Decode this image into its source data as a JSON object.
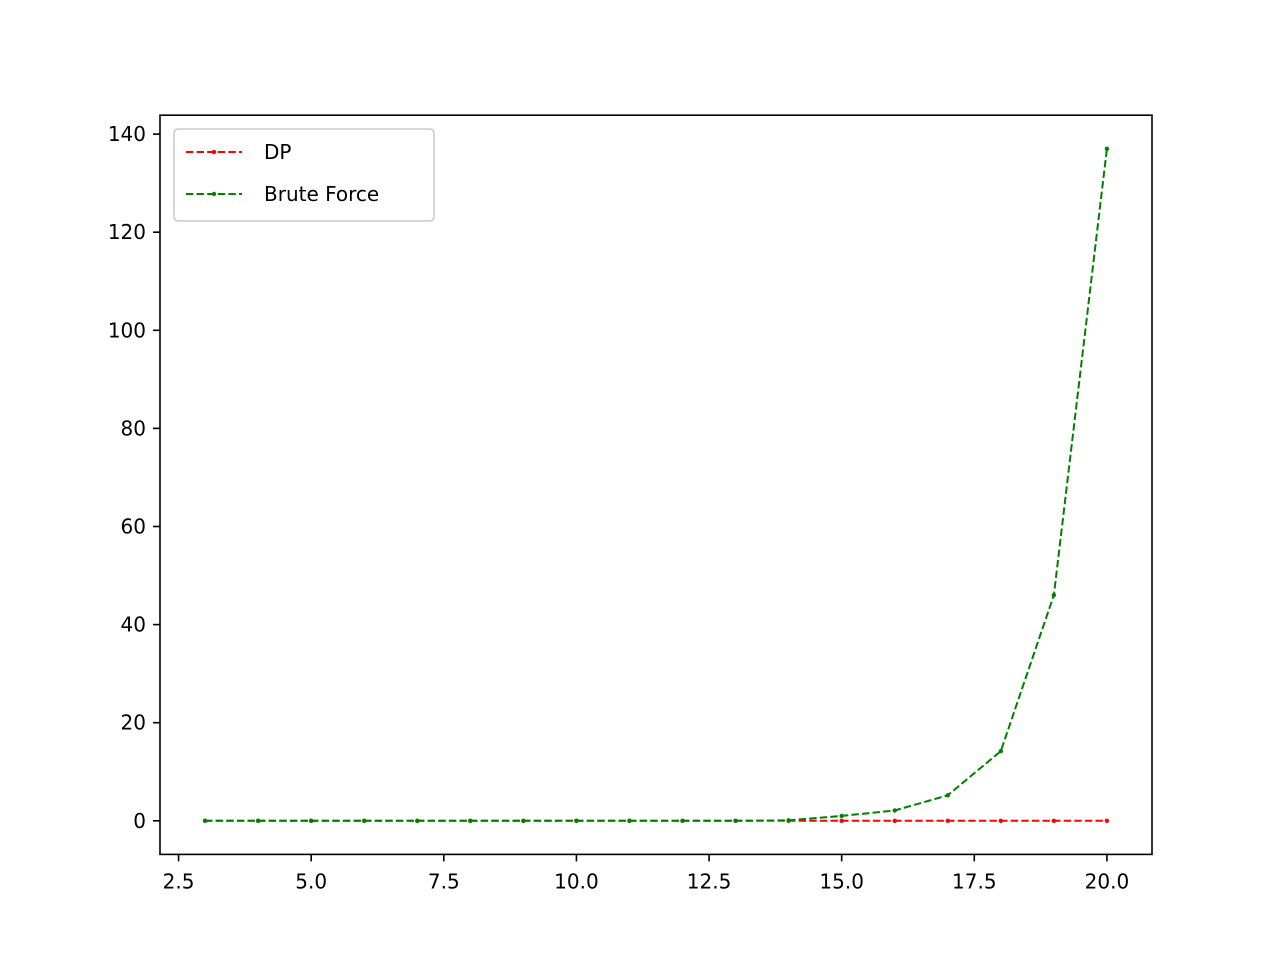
{
  "chart_data": {
    "type": "line",
    "title": "",
    "xlabel": "",
    "ylabel": "",
    "x": [
      3,
      4,
      5,
      6,
      7,
      8,
      9,
      10,
      11,
      12,
      13,
      14,
      15,
      16,
      17,
      18,
      19,
      20
    ],
    "xlim": [
      2.15,
      20.85
    ],
    "ylim": [
      -6.85,
      143.85
    ],
    "xticks": [
      2.5,
      5.0,
      7.5,
      10.0,
      12.5,
      15.0,
      17.5,
      20.0
    ],
    "xtick_labels": [
      "2.5",
      "5.0",
      "7.5",
      "10.0",
      "12.5",
      "15.0",
      "17.5",
      "20.0"
    ],
    "yticks": [
      0,
      20,
      40,
      60,
      80,
      100,
      120,
      140
    ],
    "ytick_labels": [
      "0",
      "20",
      "40",
      "60",
      "80",
      "100",
      "120",
      "140"
    ],
    "grid": false,
    "legend_position": "top-left",
    "series": [
      {
        "name": "DP",
        "color": "#ff0000",
        "line_style": "dashed",
        "marker": "point",
        "values": [
          0,
          0,
          0,
          0,
          0,
          0,
          0,
          0,
          0,
          0,
          0,
          0,
          0,
          0,
          0,
          0,
          0,
          0
        ]
      },
      {
        "name": "Brute Force",
        "color": "#008000",
        "line_style": "dashed",
        "marker": "point",
        "values": [
          0,
          0,
          0,
          0,
          0,
          0,
          0,
          0,
          0,
          0,
          0,
          0.1,
          1,
          2.1,
          5.2,
          14.2,
          46,
          137
        ]
      }
    ]
  }
}
